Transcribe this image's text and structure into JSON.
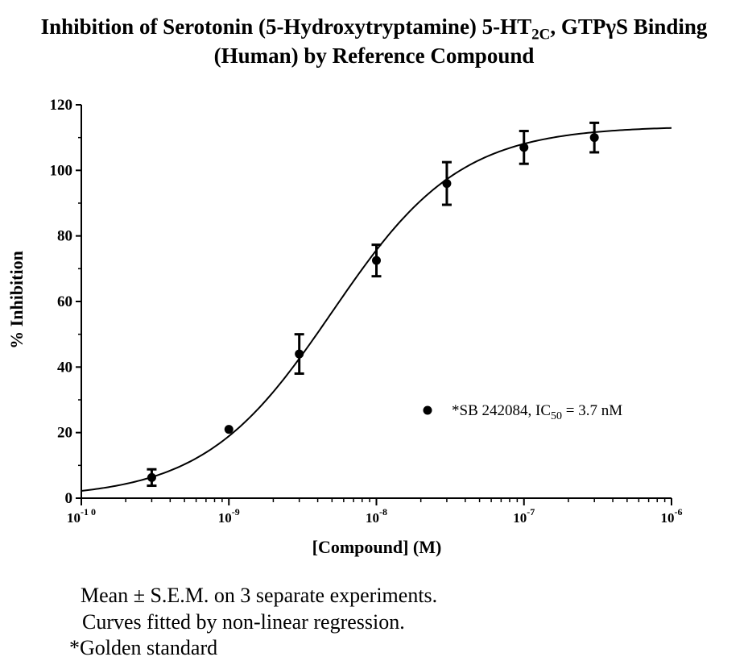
{
  "title_line1_main": "Inhibition of Serotonin (5-Hydroxytryptamine) 5-HT",
  "title_line1_sub": "2C",
  "title_line1_tail": ", GTPγS  Binding",
  "title_line2": "(Human) by Reference Compound",
  "footnotes": {
    "line1": "Mean ± S.E.M. on 3 separate experiments.",
    "line2": "Curves fitted by non-linear regression.",
    "line3": "*Golden standard"
  },
  "chart_data": {
    "type": "scatter",
    "xlabel": "[Compound] (M)",
    "ylabel": "% Inhibition",
    "x_scale": "log",
    "xlim": [
      1e-10,
      1e-06
    ],
    "ylim": [
      0,
      120
    ],
    "y_ticks": [
      0,
      20,
      40,
      60,
      80,
      100,
      120
    ],
    "x_tick_values": [
      1e-10,
      1e-09,
      1e-08,
      1e-07,
      1e-06
    ],
    "x_tick_labels": [
      {
        "base": "10",
        "exp": "-1 0"
      },
      {
        "base": "10",
        "exp": "-9"
      },
      {
        "base": "10",
        "exp": "-8"
      },
      {
        "base": "10",
        "exp": "-7"
      },
      {
        "base": "10",
        "exp": "-6"
      }
    ],
    "grid": false,
    "legend_position": "right",
    "series": [
      {
        "name": "*SB 242084, IC50 = 3.7 nM",
        "legend_main": "*SB 242084, IC",
        "legend_sub": "50",
        "legend_tail": " = 3.7 nM",
        "marker": "circle",
        "color": "#000000",
        "points": [
          {
            "x": 3e-10,
            "y": 6.3,
            "err": 2.5
          },
          {
            "x": 1e-09,
            "y": 21.0,
            "err": 0
          },
          {
            "x": 3e-09,
            "y": 44.0,
            "err": 6.0
          },
          {
            "x": 1e-08,
            "y": 72.5,
            "err": 4.8
          },
          {
            "x": 3e-08,
            "y": 96.0,
            "err": 6.5
          },
          {
            "x": 1e-07,
            "y": 107.0,
            "err": 5.0
          },
          {
            "x": 3e-07,
            "y": 110.0,
            "err": 4.5
          }
        ],
        "fit": {
          "model": "four-parameter logistic",
          "bottom": 0,
          "top": 113.5,
          "ec50": 5e-09,
          "hill": 1.0
        }
      }
    ]
  }
}
